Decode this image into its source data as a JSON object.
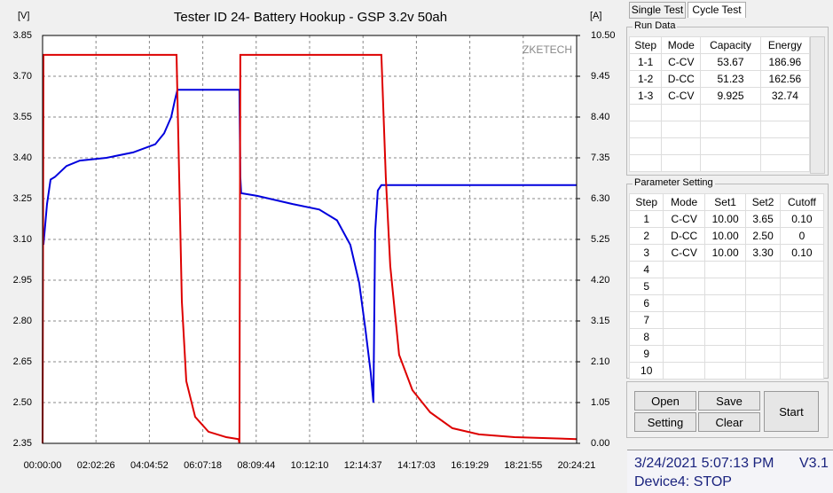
{
  "chart_data": {
    "type": "line",
    "title": "Tester ID 24- Battery Hookup - GSP 3.2v 50ah",
    "y_label": "[V]",
    "y2_label": "[A]",
    "watermark": "ZKETECH",
    "grid": true,
    "xlim": [
      0,
      73461
    ],
    "xticks": [
      {
        "value": 0,
        "label": "00:00:00"
      },
      {
        "value": 7346,
        "label": "02:02:26"
      },
      {
        "value": 14692,
        "label": "04:04:52"
      },
      {
        "value": 22038,
        "label": "06:07:18"
      },
      {
        "value": 29384,
        "label": "08:09:44"
      },
      {
        "value": 36730,
        "label": "10:12:10"
      },
      {
        "value": 44077,
        "label": "12:14:37"
      },
      {
        "value": 51423,
        "label": "14:17:03"
      },
      {
        "value": 58769,
        "label": "16:19:29"
      },
      {
        "value": 66115,
        "label": "18:21:55"
      },
      {
        "value": 73461,
        "label": "20:24:21"
      }
    ],
    "ylim": [
      2.35,
      3.85
    ],
    "yticks": [
      2.35,
      {
        "value": 2.5,
        "label": "2.50"
      },
      2.65,
      {
        "value": 2.8,
        "label": "2.80"
      },
      2.95,
      {
        "value": 3.1,
        "label": "3.10"
      },
      3.25,
      {
        "value": 3.4,
        "label": "3.40"
      },
      3.55,
      {
        "value": 3.7,
        "label": "3.70"
      },
      3.85
    ],
    "y2lim": [
      0,
      10.5
    ],
    "y2ticks": [
      {
        "value": 0,
        "label": "0.00"
      },
      1.05,
      {
        "value": 2.1,
        "label": "2.10"
      },
      3.15,
      {
        "value": 4.2,
        "label": "4.20"
      },
      5.25,
      {
        "value": 6.3,
        "label": "6.30"
      },
      7.35,
      {
        "value": 8.4,
        "label": "8.40"
      },
      9.45,
      {
        "value": 10.5,
        "label": "10.50"
      }
    ],
    "series": [
      {
        "color": "#0000dd",
        "axis": "y",
        "x": [
          122,
          610,
          1098,
          1708,
          3294,
          5124,
          8784,
          12444,
          15494,
          16714,
          17690,
          18178,
          18544,
          27084,
          27206,
          27328,
          29524,
          34404,
          38064,
          40504,
          42334,
          43554,
          44408,
          45140,
          45506,
          45750,
          46116,
          46604,
          73444
        ],
        "values": [
          3.08,
          3.23,
          3.32,
          3.33,
          3.37,
          3.39,
          3.4,
          3.42,
          3.45,
          3.49,
          3.55,
          3.61,
          3.65,
          3.65,
          3.33,
          3.27,
          3.26,
          3.23,
          3.21,
          3.17,
          3.08,
          2.94,
          2.77,
          2.61,
          2.5,
          3.13,
          3.28,
          3.3,
          3.3
        ]
      },
      {
        "color": "#dd0000",
        "axis": "y2",
        "x": [
          0,
          122,
          18422,
          18788,
          19154,
          19764,
          20984,
          22814,
          25254,
          26962,
          27084,
          27206,
          46604,
          47214,
          47824,
          49044,
          50874,
          53314,
          56364,
          60024,
          64904,
          73444
        ],
        "values": [
          0,
          10,
          10,
          6.85,
          3.65,
          1.6,
          0.68,
          0.3,
          0.16,
          0.11,
          0,
          10,
          10,
          6.85,
          4.57,
          2.28,
          1.37,
          0.8,
          0.39,
          0.23,
          0.16,
          0.11
        ]
      }
    ]
  },
  "tabs": [
    "Single Test",
    "Cycle Test"
  ],
  "run_data": {
    "title": "Run Data",
    "header": [
      "Step",
      "Mode",
      "Capacity",
      "Energy"
    ],
    "rows": [
      [
        "1-1",
        "C-CV",
        "53.67",
        "186.96"
      ],
      [
        "1-2",
        "D-CC",
        "51.23",
        "162.56"
      ],
      [
        "1-3",
        "C-CV",
        "9.925",
        "32.74"
      ]
    ]
  },
  "parameter_setting": {
    "title": "Parameter Setting",
    "header": [
      "Step",
      "Mode",
      "Set1",
      "Set2",
      "Cutoff"
    ],
    "rows": [
      [
        "1",
        "C-CV",
        "10.00",
        "3.65",
        "0.10"
      ],
      [
        "2",
        "D-CC",
        "10.00",
        "2.50",
        "0"
      ],
      [
        "3",
        "C-CV",
        "10.00",
        "3.30",
        "0.10"
      ],
      [
        "4"
      ],
      [
        "5"
      ],
      [
        "6"
      ],
      [
        "7"
      ],
      [
        "8"
      ],
      [
        "9"
      ],
      [
        "10"
      ]
    ]
  },
  "buttons": [
    "Open",
    "Save",
    "Setting",
    "Clear",
    "Start"
  ],
  "status": {
    "datetime": "3/24/2021 5:07:13 PM",
    "version": "V3.1",
    "device": "Device4: STOP"
  }
}
